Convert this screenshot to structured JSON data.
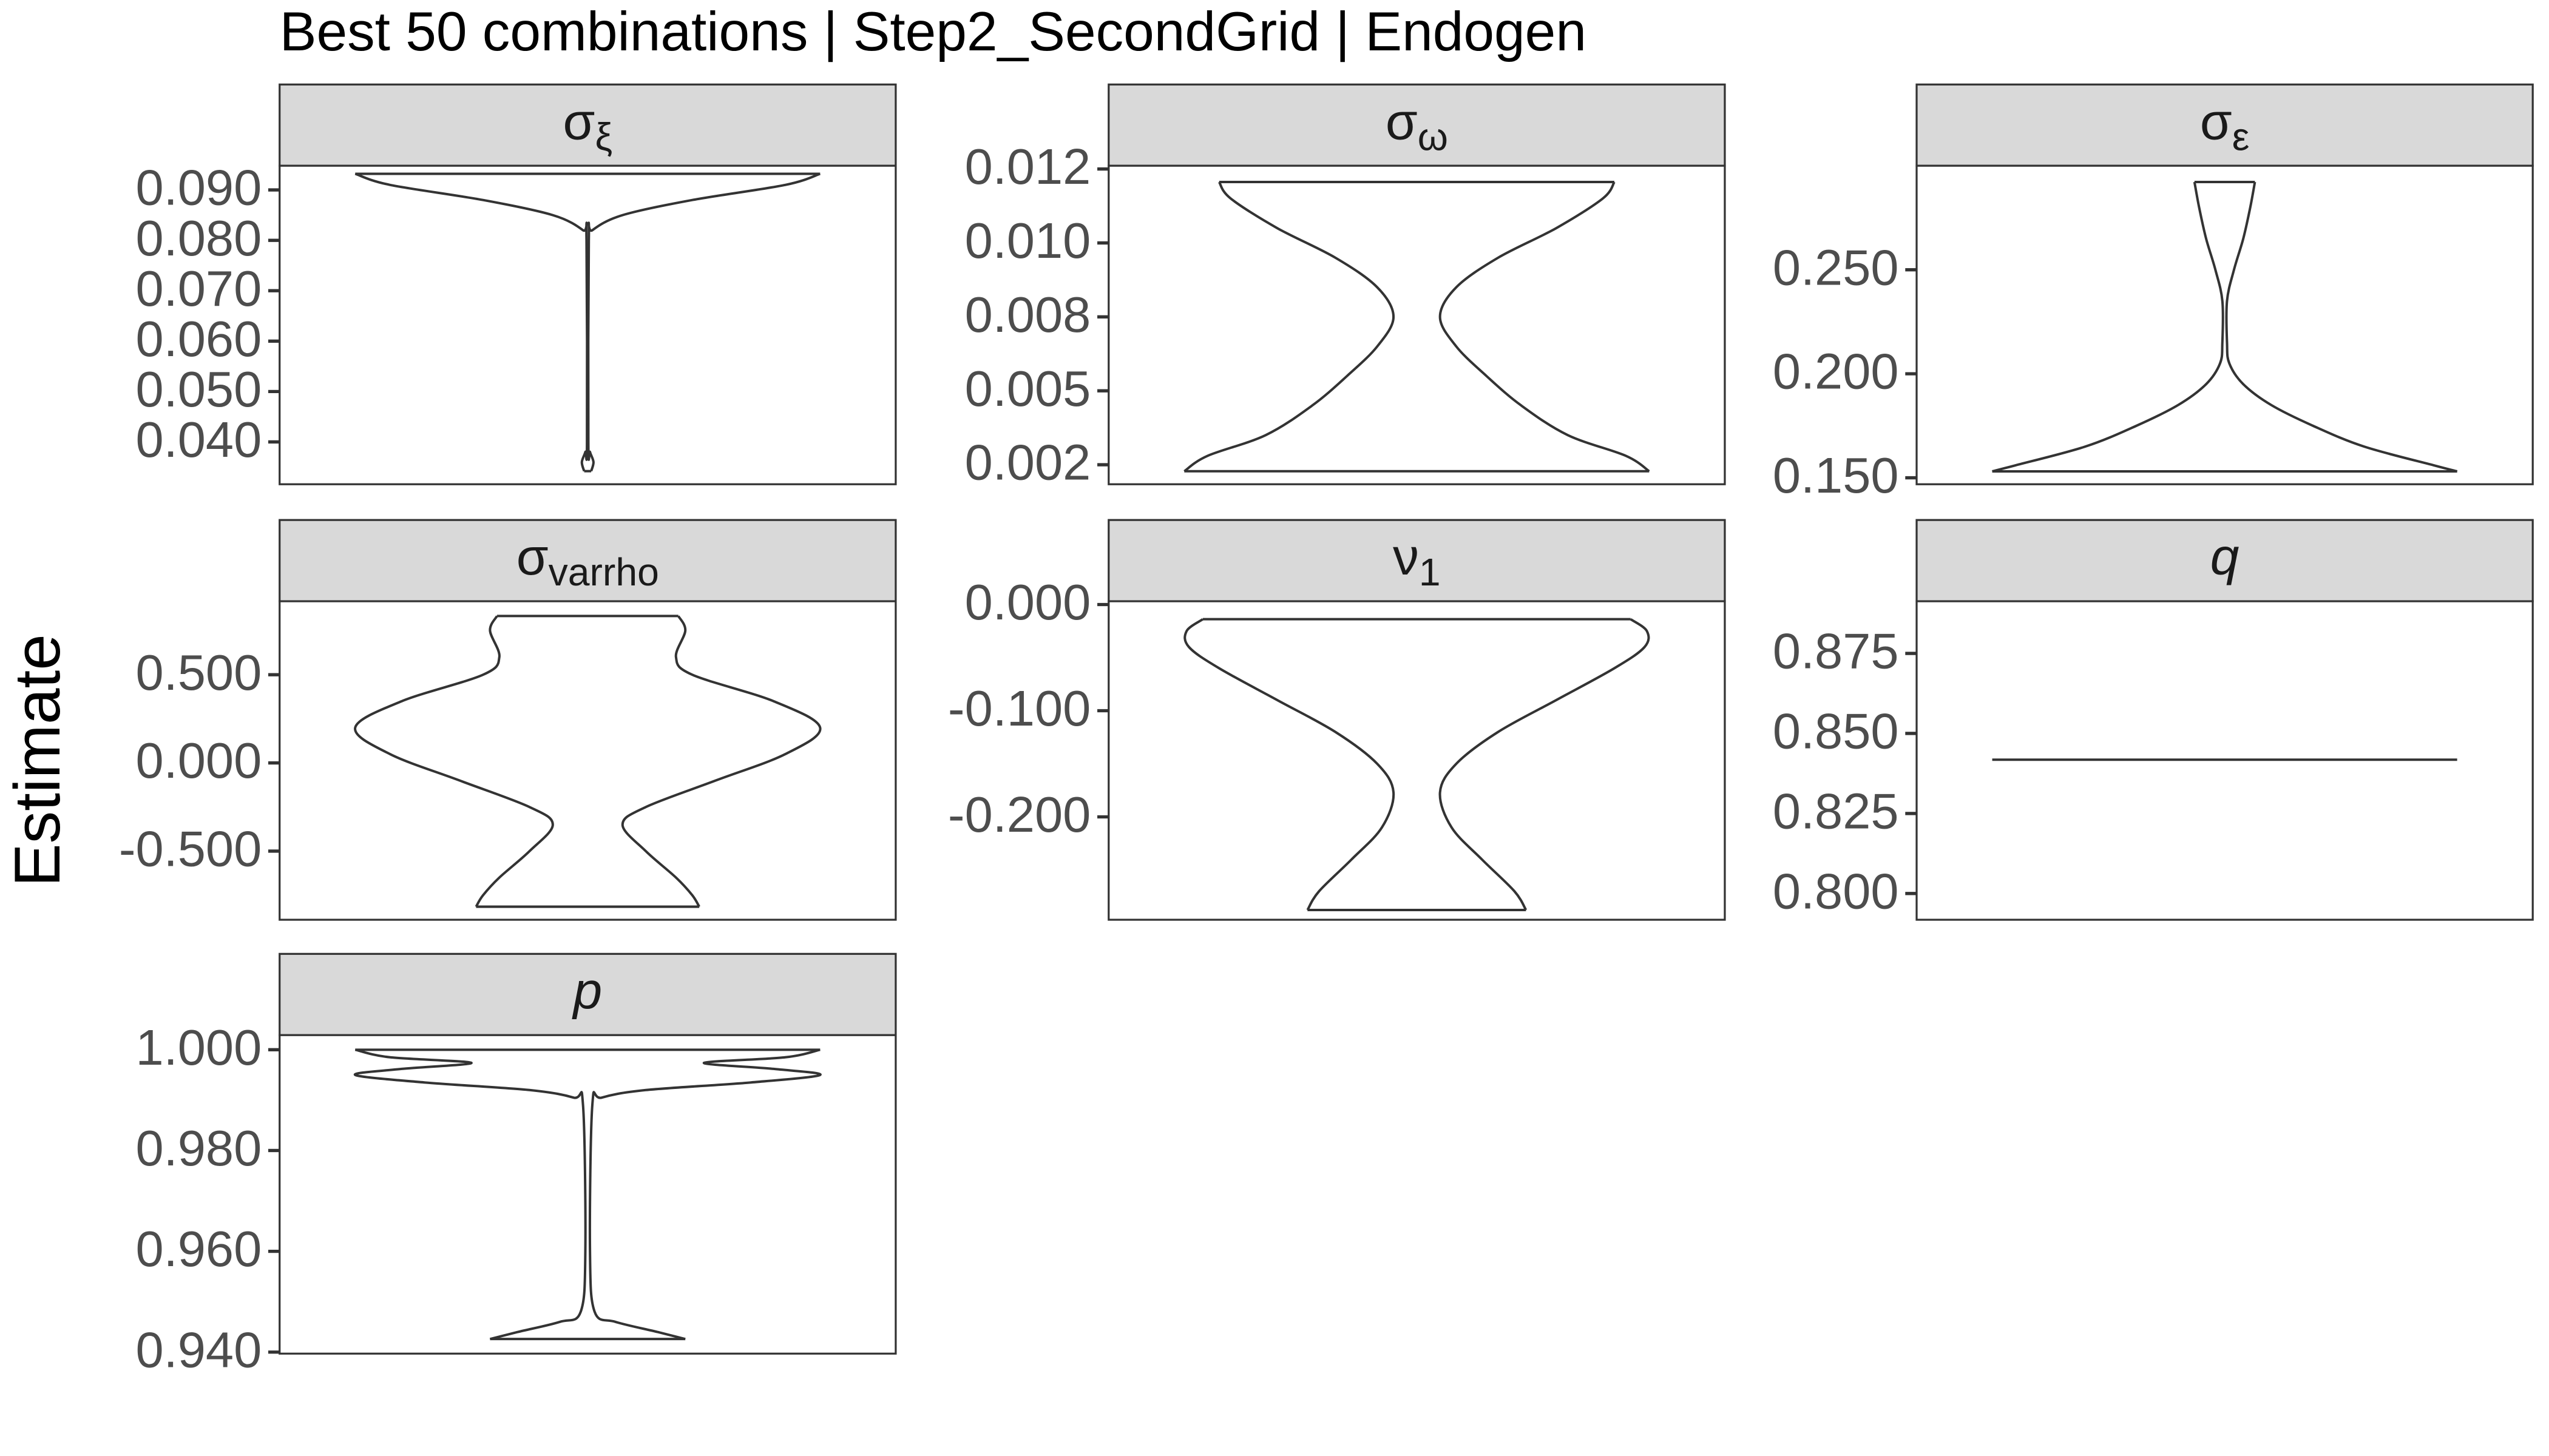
{
  "title": "Best 50 combinations | Step2_SecondGrid | Endogen",
  "ylabel": "Estimate",
  "chart_data": [
    {
      "type": "violin",
      "label": {
        "main": "σ",
        "sub": "ξ"
      },
      "ylim": [
        0.0316,
        0.0948
      ],
      "yticks": [
        {
          "value": 0.09,
          "label": "0.090"
        },
        {
          "value": 0.08,
          "label": "0.080"
        },
        {
          "value": 0.07,
          "label": "0.070"
        },
        {
          "value": 0.06,
          "label": "0.060"
        },
        {
          "value": 0.05,
          "label": "0.050"
        },
        {
          "value": 0.04,
          "label": "0.040"
        }
      ],
      "y": [
        0.0342,
        0.036,
        0.038,
        0.04,
        0.08,
        0.082,
        0.085,
        0.088,
        0.091,
        0.0932
      ],
      "width": [
        0.015,
        0.025,
        0.01,
        0.003,
        0.005,
        0.02,
        0.15,
        0.45,
        0.85,
        1.0
      ]
    },
    {
      "type": "violin",
      "label": {
        "main": "σ",
        "sub": "ω"
      },
      "ylim": [
        0.00184,
        0.01261
      ],
      "yticks": [
        {
          "value": 0.0125,
          "label": "0.012"
        },
        {
          "value": 0.01,
          "label": "0.010"
        },
        {
          "value": 0.0075,
          "label": "0.008"
        },
        {
          "value": 0.005,
          "label": "0.005"
        },
        {
          "value": 0.0025,
          "label": "0.002"
        }
      ],
      "y": [
        0.00228,
        0.0028,
        0.0035,
        0.0045,
        0.0055,
        0.0065,
        0.0075,
        0.0085,
        0.0095,
        0.0105,
        0.0115,
        0.01206
      ],
      "width": [
        1.0,
        0.9,
        0.65,
        0.45,
        0.3,
        0.17,
        0.1,
        0.17,
        0.35,
        0.6,
        0.8,
        0.85
      ]
    },
    {
      "type": "violin",
      "label": {
        "main": "σ",
        "sub": "ε"
      },
      "ylim": [
        0.1469,
        0.3
      ],
      "yticks": [
        {
          "value": 0.25,
          "label": "0.250"
        },
        {
          "value": 0.2,
          "label": "0.200"
        },
        {
          "value": 0.15,
          "label": "0.150"
        }
      ],
      "y": [
        0.1531,
        0.156,
        0.165,
        0.175,
        0.185,
        0.195,
        0.205,
        0.215,
        0.235,
        0.25,
        0.265,
        0.28,
        0.2922
      ],
      "width": [
        1.0,
        0.9,
        0.6,
        0.38,
        0.2,
        0.08,
        0.02,
        0.01,
        0.01,
        0.04,
        0.08,
        0.11,
        0.13
      ]
    },
    {
      "type": "violin",
      "label": {
        "main": "σ",
        "sub": "varrho"
      },
      "ylim": [
        -0.889,
        0.9167
      ],
      "yticks": [
        {
          "value": 0.5,
          "label": "0.500"
        },
        {
          "value": 0,
          "label": "0.000"
        },
        {
          "value": -0.5,
          "label": "-0.500"
        }
      ],
      "y": [
        -0.815,
        -0.75,
        -0.65,
        -0.5,
        -0.35,
        -0.25,
        -0.1,
        0.05,
        0.2,
        0.35,
        0.5,
        0.6,
        0.75,
        0.833
      ],
      "width": [
        0.48,
        0.45,
        0.38,
        0.25,
        0.15,
        0.25,
        0.55,
        0.85,
        1.0,
        0.8,
        0.45,
        0.38,
        0.42,
        0.39
      ]
    },
    {
      "type": "violin",
      "label": {
        "main": "ν",
        "sub": "1"
      },
      "ylim": [
        -0.2969,
        0.0031
      ],
      "yticks": [
        {
          "value": 0,
          "label": "0.000"
        },
        {
          "value": -0.1,
          "label": "-0.100"
        },
        {
          "value": -0.2,
          "label": "-0.200"
        }
      ],
      "y": [
        -0.2877,
        -0.27,
        -0.24,
        -0.21,
        -0.177,
        -0.15,
        -0.12,
        -0.09,
        -0.06,
        -0.04,
        -0.025,
        -0.0138
      ],
      "width": [
        0.47,
        0.42,
        0.28,
        0.15,
        0.1,
        0.17,
        0.35,
        0.6,
        0.85,
        0.98,
        0.99,
        0.92
      ]
    },
    {
      "type": "violin",
      "label": {
        "main": "q"
      },
      "italic": true,
      "ylim": [
        0.7918,
        0.8913
      ],
      "yticks": [
        0.875,
        {
          "value": 0.85,
          "label": "0.850"
        },
        0.825,
        {
          "value": 0.8,
          "label": "0.800"
        }
      ],
      "y": [
        0.8418
      ],
      "width": [
        1.0
      ]
    },
    {
      "type": "violin",
      "label": {
        "main": "p"
      },
      "italic": true,
      "ylim": [
        0.9397,
        1.0029
      ],
      "yticks": [
        {
          "value": 1,
          "label": "1.000"
        },
        {
          "value": 0.98,
          "label": "0.980"
        },
        {
          "value": 0.96,
          "label": "0.960"
        },
        {
          "value": 0.94,
          "label": "0.940"
        }
      ],
      "y": [
        0.9426,
        0.944,
        0.946,
        0.948,
        0.96,
        0.989,
        0.9905,
        0.992,
        0.9935,
        0.995,
        0.9962,
        0.9974,
        0.9985,
        1.0
      ],
      "width": [
        0.42,
        0.3,
        0.12,
        0.03,
        0.01,
        0.02,
        0.06,
        0.25,
        0.7,
        1.0,
        0.8,
        0.5,
        0.85,
        1.0
      ]
    }
  ]
}
